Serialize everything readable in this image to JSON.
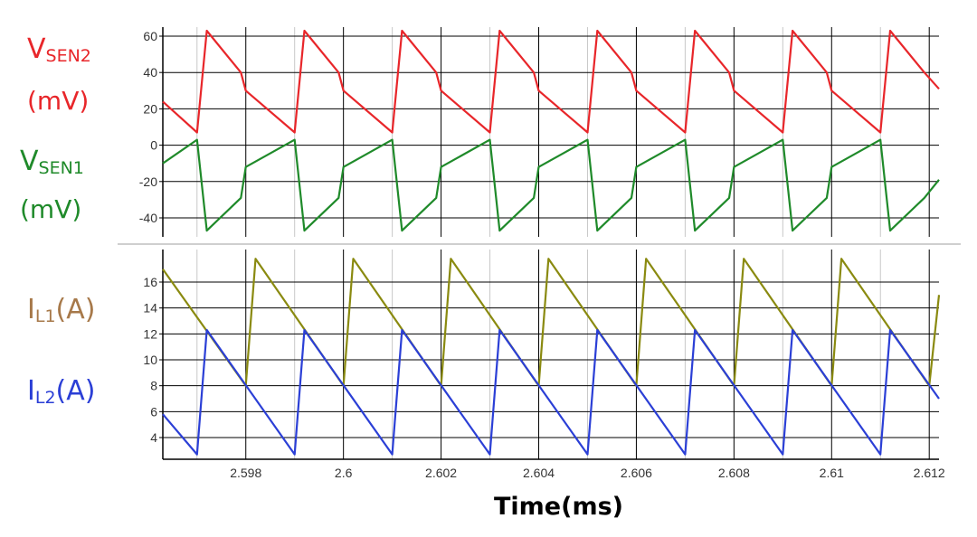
{
  "chart_data": [
    {
      "type": "line",
      "panel": "top",
      "ylim": [
        -50,
        65
      ],
      "yticks": [
        60,
        40,
        20,
        0,
        -20,
        -40
      ],
      "xlim": [
        2.5963,
        2.6122
      ],
      "grid": true,
      "series": [
        {
          "name": "VSEN2",
          "unit": "(mV)",
          "name_main": "V",
          "name_sub": "SEN2",
          "color": "#e8262a",
          "x": [
            2.5963,
            2.597,
            2.5972,
            2.5979,
            2.598,
            2.599,
            2.5992,
            2.5999,
            2.6,
            2.601,
            2.6012,
            2.6019,
            2.602,
            2.603,
            2.6032,
            2.6039,
            2.604,
            2.605,
            2.6052,
            2.6059,
            2.606,
            2.607,
            2.6072,
            2.6079,
            2.608,
            2.609,
            2.6092,
            2.6099,
            2.61,
            2.611,
            2.6112,
            2.6119,
            2.6122
          ],
          "y": [
            24,
            7,
            63,
            40,
            30,
            7,
            63,
            40,
            30,
            7,
            63,
            40,
            30,
            7,
            63,
            40,
            30,
            7,
            63,
            40,
            30,
            7,
            63,
            40,
            30,
            7,
            63,
            40,
            30,
            7,
            63,
            40,
            31
          ]
        },
        {
          "name": "VSEN1",
          "unit": "(mV)",
          "name_main": "V",
          "name_sub": "SEN1",
          "color": "#1f8a2a",
          "x": [
            2.5963,
            2.597,
            2.5972,
            2.5979,
            2.598,
            2.599,
            2.5992,
            2.5999,
            2.6,
            2.601,
            2.6012,
            2.6019,
            2.602,
            2.603,
            2.6032,
            2.6039,
            2.604,
            2.605,
            2.6052,
            2.6059,
            2.606,
            2.607,
            2.6072,
            2.6079,
            2.608,
            2.609,
            2.6092,
            2.6099,
            2.61,
            2.611,
            2.6112,
            2.6119,
            2.6122
          ],
          "y": [
            -10,
            3,
            -47,
            -29,
            -12,
            3,
            -47,
            -29,
            -12,
            3,
            -47,
            -29,
            -12,
            3,
            -47,
            -29,
            -12,
            3,
            -47,
            -29,
            -12,
            3,
            -47,
            -29,
            -12,
            3,
            -47,
            -29,
            -12,
            3,
            -47,
            -29,
            -19
          ]
        }
      ]
    },
    {
      "type": "line",
      "panel": "bottom",
      "ylim": [
        2.2,
        18
      ],
      "yticks": [
        16,
        14,
        12,
        10,
        8,
        6,
        4
      ],
      "xlim": [
        2.5963,
        2.6122
      ],
      "grid": true,
      "xlabel": "Time(ms)",
      "xticks": [
        "2.598",
        "2.6",
        "2.602",
        "2.604",
        "2.606",
        "2.608",
        "2.61",
        "2.612"
      ],
      "xtick_values": [
        2.598,
        2.6,
        2.602,
        2.604,
        2.606,
        2.608,
        2.61,
        2.612
      ],
      "series": [
        {
          "name": "IL1(A)",
          "name_main": "I",
          "name_sub": "L1",
          "unit": "(A)",
          "color": "#8a8a10",
          "x": [
            2.5963,
            2.598,
            2.5982,
            2.6,
            2.6002,
            2.602,
            2.6022,
            2.604,
            2.6042,
            2.606,
            2.6062,
            2.608,
            2.6082,
            2.61,
            2.6102,
            2.612,
            2.6122
          ],
          "y": [
            17,
            8,
            17.8,
            8,
            17.8,
            8,
            17.8,
            8,
            17.8,
            8,
            17.8,
            8,
            17.8,
            8,
            17.8,
            8,
            15
          ]
        },
        {
          "name": "IL2(A)",
          "name_main": "I",
          "name_sub": "L2",
          "unit": "(A)",
          "color": "#2b3fd6",
          "x": [
            2.5963,
            2.597,
            2.5972,
            2.599,
            2.5992,
            2.601,
            2.6012,
            2.603,
            2.6032,
            2.605,
            2.6052,
            2.607,
            2.6072,
            2.609,
            2.6092,
            2.611,
            2.6112,
            2.6122
          ],
          "y": [
            5.8,
            2.7,
            12.3,
            2.7,
            12.3,
            2.7,
            12.3,
            2.7,
            12.3,
            2.7,
            12.3,
            2.7,
            12.3,
            2.7,
            12.3,
            2.7,
            12.3,
            7
          ]
        }
      ]
    }
  ]
}
